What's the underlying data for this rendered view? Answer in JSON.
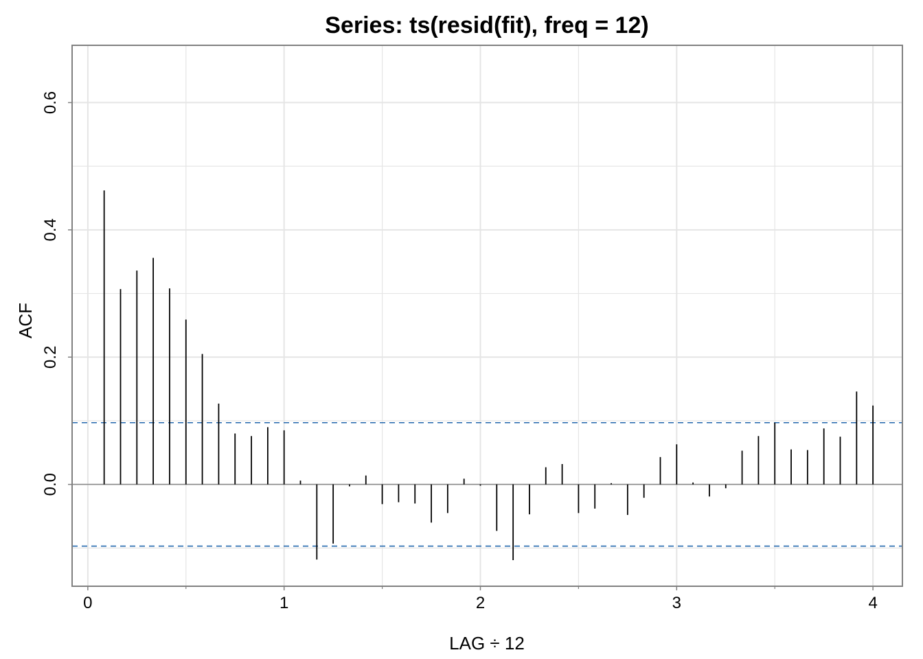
{
  "chart_data": {
    "type": "bar",
    "title": "Series:  ts(resid(fit), freq = 12)",
    "xlabel": "LAG ÷ 12",
    "ylabel": "ACF",
    "xlim": [
      -0.08,
      4.15
    ],
    "ylim": [
      -0.16,
      0.69
    ],
    "x_ticks": [
      0,
      1,
      2,
      3,
      4
    ],
    "x_tick_labels": [
      "0",
      "1",
      "2",
      "3",
      "4"
    ],
    "y_ticks": [
      0.0,
      0.2,
      0.4,
      0.6
    ],
    "y_tick_labels": [
      "0.0",
      "0.2",
      "0.4",
      "0.6"
    ],
    "x_minor_gridlines": [
      0.5,
      1.5,
      2.5,
      3.5
    ],
    "y_minor_gridlines": [
      -0.1,
      0.1,
      0.3,
      0.5
    ],
    "grid": true,
    "confidence_band": 0.097,
    "colors": {
      "bars": "#000000",
      "confidence": "#2166ac",
      "grid": "#e5e5e5",
      "zero_line": "#888888",
      "frame": "#808080"
    },
    "lags": [
      0.0833,
      0.1667,
      0.25,
      0.3333,
      0.4167,
      0.5,
      0.5833,
      0.6667,
      0.75,
      0.8333,
      0.9167,
      1.0,
      1.0833,
      1.1667,
      1.25,
      1.3333,
      1.4167,
      1.5,
      1.5833,
      1.6667,
      1.75,
      1.8333,
      1.9167,
      2.0,
      2.0833,
      2.1667,
      2.25,
      2.3333,
      2.4167,
      2.5,
      2.5833,
      2.6667,
      2.75,
      2.8333,
      2.9167,
      3.0,
      3.0833,
      3.1667,
      3.25,
      3.3333,
      3.4167,
      3.5,
      3.5833,
      3.6667,
      3.75,
      3.8333,
      3.9167,
      4.0
    ],
    "values": [
      0.462,
      0.307,
      0.336,
      0.356,
      0.308,
      0.259,
      0.205,
      0.127,
      0.08,
      0.076,
      0.09,
      0.085,
      0.006,
      -0.118,
      -0.093,
      -0.003,
      0.014,
      -0.031,
      -0.028,
      -0.03,
      -0.06,
      -0.045,
      0.009,
      -0.002,
      -0.073,
      -0.119,
      -0.047,
      0.027,
      0.032,
      -0.045,
      -0.038,
      0.002,
      -0.048,
      -0.021,
      0.043,
      0.063,
      0.003,
      -0.019,
      -0.006,
      0.053,
      0.076,
      0.097,
      0.055,
      0.054,
      0.088,
      0.075,
      0.146,
      0.124
    ]
  }
}
